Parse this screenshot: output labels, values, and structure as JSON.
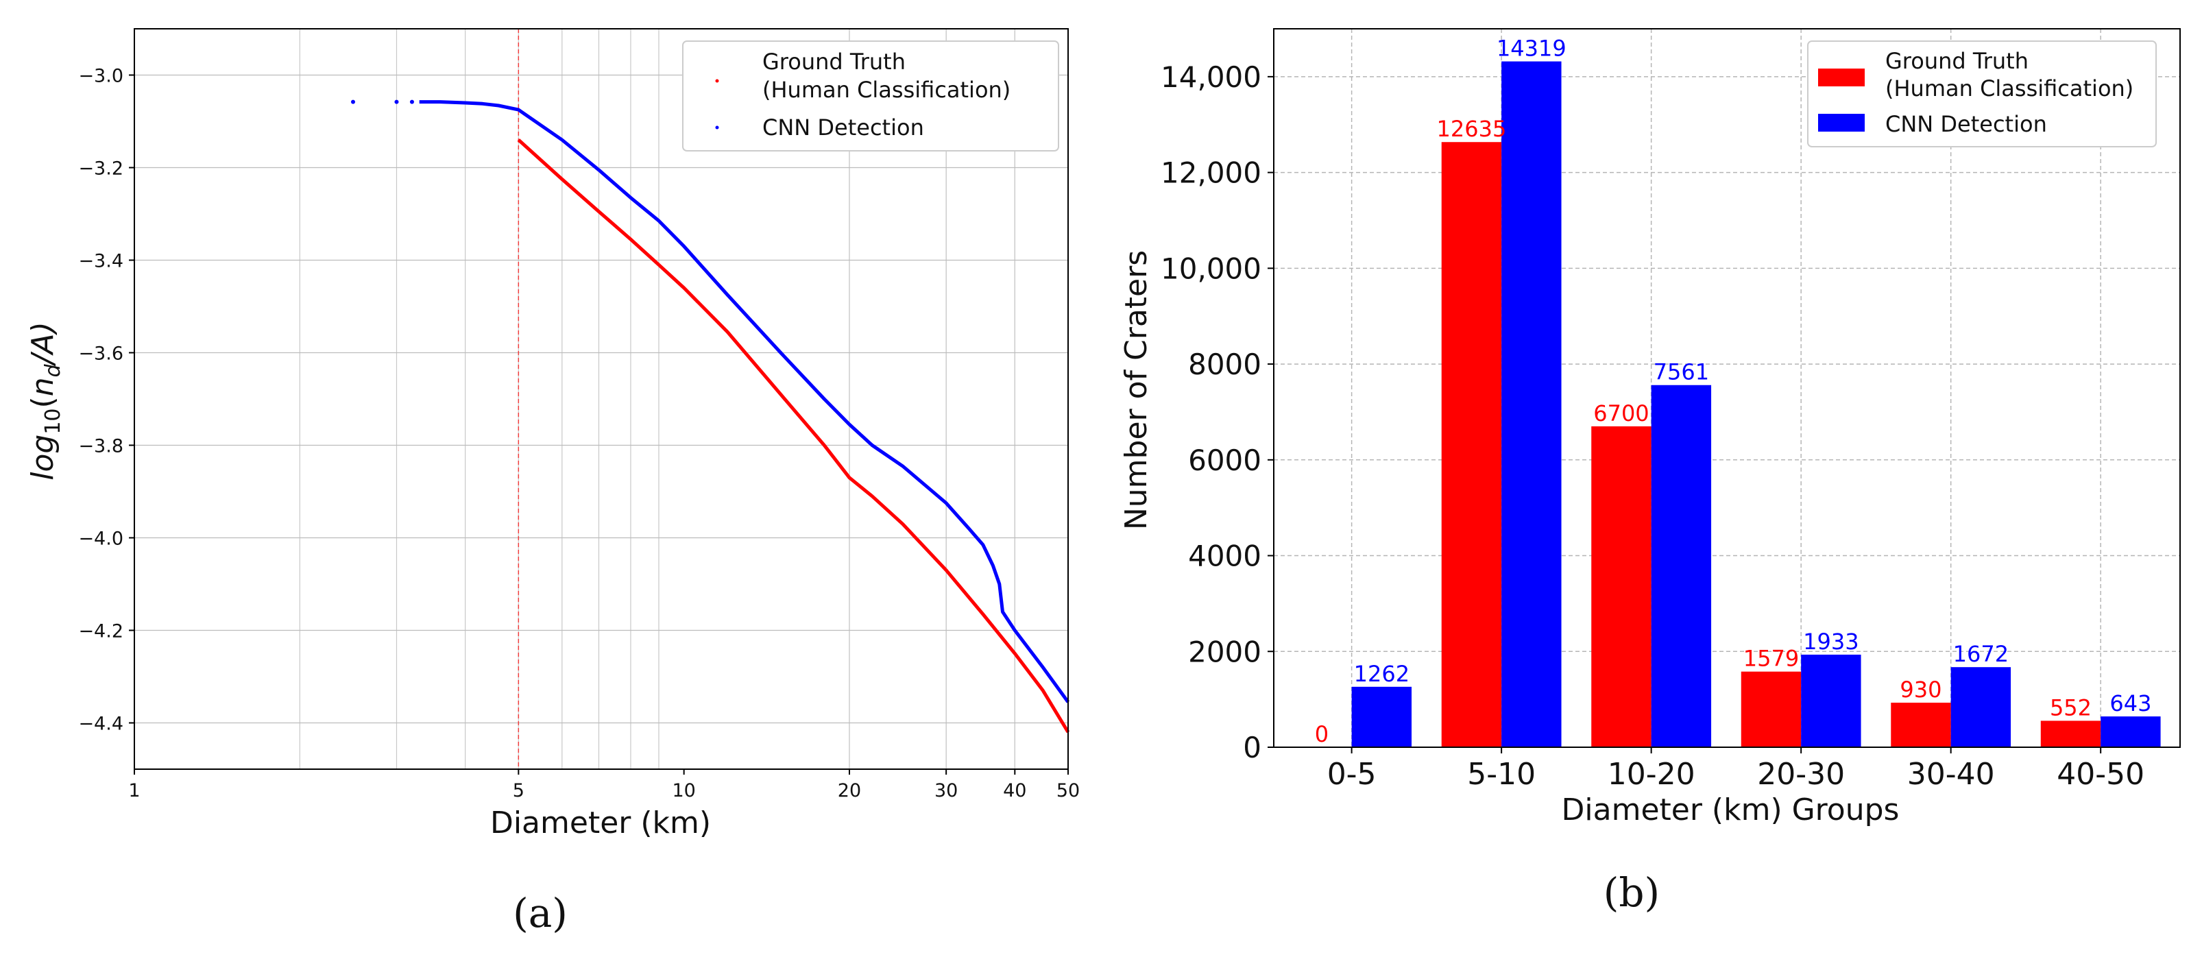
{
  "colors": {
    "ground_truth": "#ff0000",
    "cnn": "#0000ff",
    "grid": "#b0b0b0",
    "axis": "#000000"
  },
  "chart_data": [
    {
      "id": "a",
      "type": "line",
      "panel_label": "(a)",
      "xscale": "log",
      "xlim": [
        1,
        50
      ],
      "ylim": [
        -4.5,
        -2.9
      ],
      "xlabel": "Diameter (km)",
      "ylabel_base": "log",
      "ylabel_sub": "10",
      "ylabel_paren_open": "(",
      "ylabel_n": "n",
      "ylabel_d": "d",
      "ylabel_rest": "/A)",
      "xticks": [
        1,
        5,
        10,
        20,
        30,
        40,
        50
      ],
      "xtick_labels": [
        "1",
        "5",
        "10",
        "20",
        "30",
        "40",
        "50"
      ],
      "yticks": [
        -3.0,
        -3.2,
        -3.4,
        -3.6,
        -3.8,
        -4.0,
        -4.2,
        -4.4
      ],
      "ytick_labels": [
        "−3.0",
        "−3.2",
        "−3.4",
        "−3.6",
        "−3.8",
        "−4.0",
        "−4.2",
        "−4.4"
      ],
      "vline": 5,
      "legend": {
        "position": "top-right",
        "entries": [
          "Ground Truth",
          "(Human Classification)",
          "CNN Detection"
        ]
      },
      "series": [
        {
          "name": "Ground Truth (Human Classification)",
          "color": "#ff0000",
          "x": [
            5,
            6,
            7,
            8,
            9,
            10,
            12,
            15,
            18,
            20,
            22,
            25,
            30,
            35,
            40,
            45,
            50
          ],
          "y": [
            -3.14,
            -3.225,
            -3.295,
            -3.355,
            -3.41,
            -3.46,
            -3.555,
            -3.69,
            -3.8,
            -3.87,
            -3.91,
            -3.97,
            -4.07,
            -4.165,
            -4.25,
            -4.33,
            -4.42
          ]
        },
        {
          "name": "CNN Detection",
          "color": "#0000ff",
          "x": [
            3.3,
            3.6,
            4.0,
            4.3,
            4.6,
            5,
            6,
            7,
            8,
            9,
            10,
            12,
            15,
            18,
            20,
            22,
            25,
            30,
            33,
            35,
            36.5,
            37.5,
            38,
            40,
            45,
            50
          ],
          "y": [
            -3.058,
            -3.058,
            -3.06,
            -3.062,
            -3.066,
            -3.075,
            -3.14,
            -3.205,
            -3.265,
            -3.315,
            -3.37,
            -3.475,
            -3.6,
            -3.7,
            -3.755,
            -3.8,
            -3.845,
            -3.925,
            -3.98,
            -4.015,
            -4.06,
            -4.1,
            -4.16,
            -4.2,
            -4.28,
            -4.355
          ]
        }
      ],
      "cnn_sparse_points": {
        "x": [
          2.5,
          3.0,
          3.2
        ],
        "y": [
          -3.058,
          -3.058,
          -3.058
        ]
      }
    },
    {
      "id": "b",
      "type": "bar",
      "panel_label": "(b)",
      "title": "",
      "xlabel": "Diameter (km) Groups",
      "ylabel": "Number of Craters",
      "ylim": [
        0,
        15000
      ],
      "yticks": [
        0,
        2000,
        4000,
        6000,
        8000,
        10000,
        12000,
        14000
      ],
      "ytick_labels": [
        "0",
        "2000",
        "4000",
        "6000",
        "8000",
        "10,000",
        "12,000",
        "14,000"
      ],
      "categories": [
        "0-5",
        "5-10",
        "10-20",
        "20-30",
        "30-40",
        "40-50"
      ],
      "series": [
        {
          "name": "Ground Truth (Human Classification)",
          "color": "#ff0000",
          "values": [
            0,
            12635,
            6700,
            1579,
            930,
            552
          ]
        },
        {
          "name": "CNN Detection",
          "color": "#0000ff",
          "values": [
            1262,
            14319,
            7561,
            1933,
            1672,
            643
          ]
        }
      ],
      "legend": {
        "position": "top-right",
        "entries": [
          "Ground Truth",
          "(Human Classification)",
          "CNN Detection"
        ]
      }
    }
  ]
}
